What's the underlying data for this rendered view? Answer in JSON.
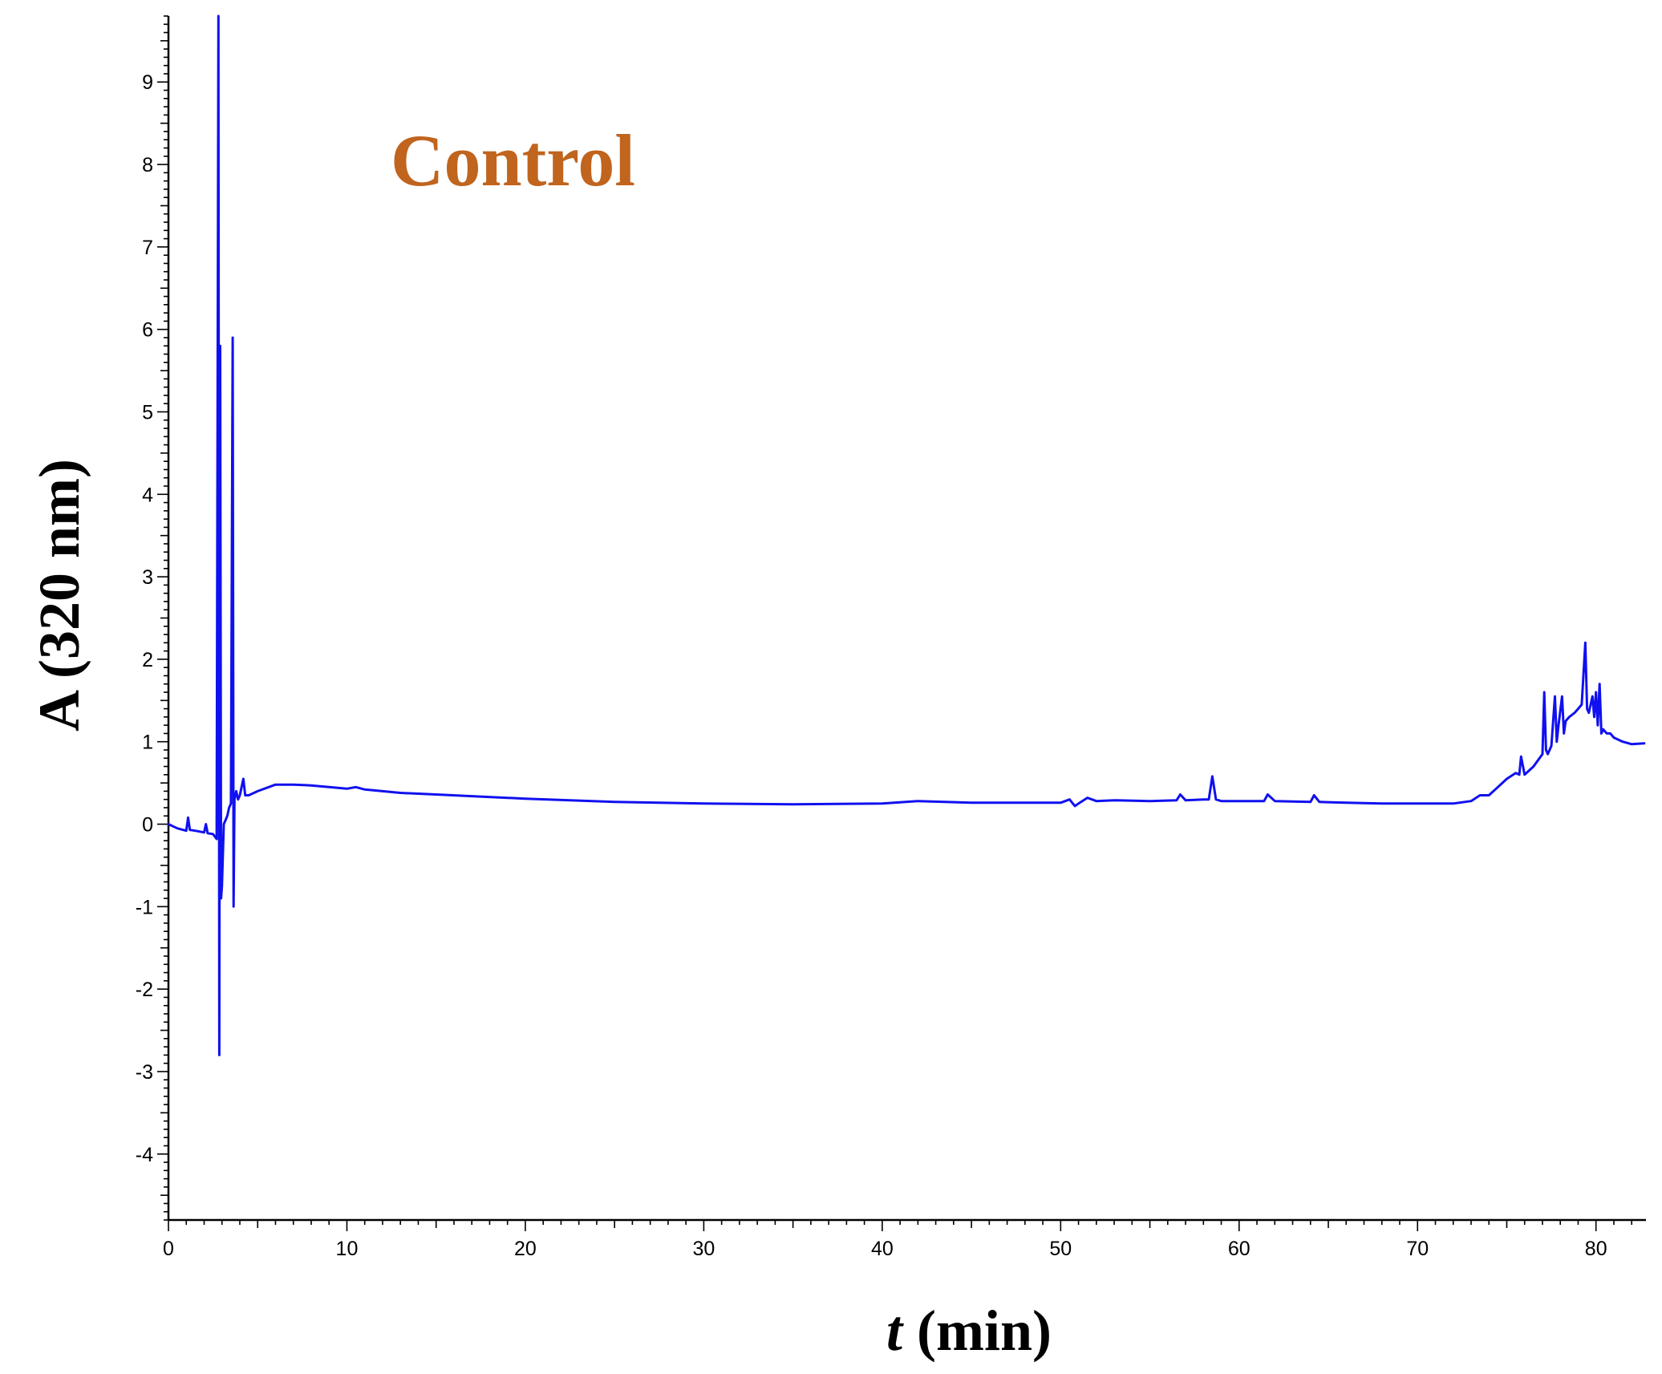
{
  "chart_data": {
    "type": "line",
    "title": "",
    "annotation": "Control",
    "xlabel_italic": "t",
    "xlabel_rest": "(min)",
    "ylabel": "A (320 nm)",
    "xlim": [
      0,
      82.8
    ],
    "ylim": [
      -4.8,
      9.8
    ],
    "xticks": [
      0,
      10,
      20,
      30,
      40,
      50,
      60,
      70,
      80
    ],
    "xtick_labels": [
      "0",
      "10",
      "20",
      "30",
      "40",
      "50",
      "60",
      "70",
      "80"
    ],
    "yticks": [
      -4,
      -3,
      -2,
      -1,
      0,
      1,
      2,
      3,
      4,
      5,
      6,
      7,
      8,
      9
    ],
    "ytick_labels": [
      "-4",
      "-3",
      "-2",
      "-1",
      "0",
      "1",
      "2",
      "3",
      "4",
      "5",
      "6",
      "7",
      "8",
      "9"
    ],
    "grid": false,
    "legend": "none",
    "series": [
      {
        "x": [
          0,
          0.5,
          1.0,
          1.1,
          1.2,
          1.5,
          2.0,
          2.1,
          2.2,
          2.5,
          2.7,
          2.8,
          2.85,
          2.9,
          2.95,
          3.0,
          3.1,
          3.2,
          3.3,
          3.4,
          3.5,
          3.6,
          3.65,
          3.7,
          3.75,
          3.8,
          3.85,
          3.9,
          4.0,
          4.2,
          4.3,
          4.5,
          5.0,
          6.0,
          7.0,
          8.0,
          9.0,
          10.0,
          10.5,
          11.0,
          12.0,
          13.0,
          15.0,
          17.0,
          20.0,
          25.0,
          30.0,
          35.0,
          40.0,
          42.0,
          45.0,
          50.0,
          50.5,
          50.8,
          51.0,
          51.5,
          52.0,
          53.0,
          55.0,
          56.5,
          56.7,
          57.0,
          58.0,
          58.3,
          58.5,
          58.7,
          59.0,
          60.0,
          61.4,
          61.6,
          62.0,
          64.0,
          64.2,
          64.5,
          66.0,
          68.0,
          70.0,
          72.0,
          73.0,
          73.5,
          74.0,
          74.5,
          75.0,
          75.5,
          75.7,
          75.8,
          76.0,
          76.5,
          77.0,
          77.1,
          77.2,
          77.3,
          77.5,
          77.7,
          77.8,
          77.9,
          78.1,
          78.2,
          78.3,
          78.5,
          78.8,
          79.0,
          79.2,
          79.4,
          79.5,
          79.6,
          79.8,
          79.9,
          80.0,
          80.1,
          80.2,
          80.3,
          80.4,
          80.6,
          80.8,
          81.0,
          81.5,
          82.0,
          82.7
        ],
        "y": [
          0.0,
          -0.05,
          -0.08,
          0.08,
          -0.07,
          -0.08,
          -0.1,
          0.0,
          -0.11,
          -0.12,
          -0.18,
          9.8,
          -2.8,
          5.8,
          -0.9,
          -0.75,
          0.0,
          0.05,
          0.1,
          0.2,
          0.25,
          5.9,
          -1.0,
          0.3,
          0.35,
          0.4,
          0.35,
          0.3,
          0.35,
          0.55,
          0.35,
          0.35,
          0.4,
          0.48,
          0.48,
          0.47,
          0.45,
          0.43,
          0.45,
          0.42,
          0.4,
          0.38,
          0.36,
          0.34,
          0.31,
          0.27,
          0.25,
          0.24,
          0.25,
          0.28,
          0.26,
          0.26,
          0.3,
          0.22,
          0.25,
          0.32,
          0.28,
          0.29,
          0.28,
          0.29,
          0.36,
          0.29,
          0.3,
          0.3,
          0.58,
          0.3,
          0.28,
          0.28,
          0.28,
          0.36,
          0.28,
          0.27,
          0.35,
          0.27,
          0.26,
          0.25,
          0.25,
          0.25,
          0.28,
          0.35,
          0.35,
          0.45,
          0.55,
          0.62,
          0.6,
          0.82,
          0.6,
          0.7,
          0.85,
          1.6,
          0.9,
          0.85,
          0.95,
          1.55,
          1.0,
          1.2,
          1.55,
          1.1,
          1.25,
          1.3,
          1.35,
          1.4,
          1.45,
          2.2,
          1.4,
          1.35,
          1.55,
          1.3,
          1.6,
          1.2,
          1.7,
          1.1,
          1.15,
          1.1,
          1.1,
          1.05,
          1.0,
          0.97,
          0.98
        ]
      }
    ]
  },
  "colors": {
    "series": "#1010f0",
    "annotation": "#c0641e",
    "axis": "#000000"
  }
}
